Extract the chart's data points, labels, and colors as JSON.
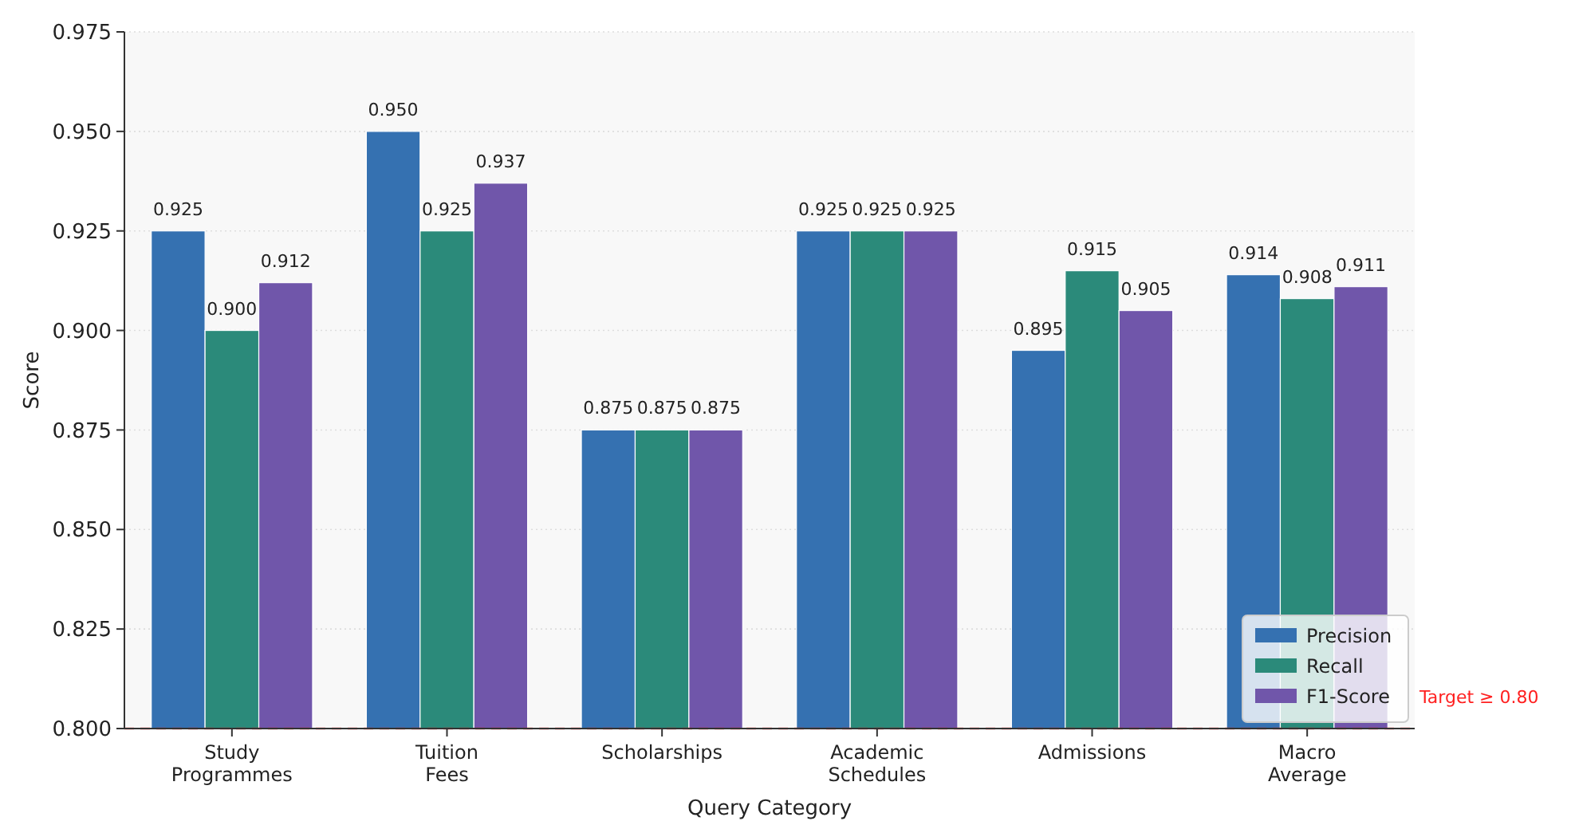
{
  "chart_data": {
    "type": "bar",
    "xlabel": "Query Category",
    "ylabel": "Score",
    "categories": [
      "Study\nProgrammes",
      "Tuition\nFees",
      "Scholarships",
      "Academic\nSchedules",
      "Admissions",
      "Macro\nAverage"
    ],
    "series": [
      {
        "name": "Precision",
        "color": "#3571b1",
        "values": [
          0.925,
          0.95,
          0.875,
          0.925,
          0.895,
          0.914
        ],
        "value_labels": [
          "0.925",
          "0.950",
          "0.875",
          "0.925",
          "0.895",
          "0.914"
        ]
      },
      {
        "name": "Recall",
        "color": "#2b8a7a",
        "values": [
          0.9,
          0.925,
          0.875,
          0.925,
          0.915,
          0.908
        ],
        "value_labels": [
          "0.900",
          "0.925",
          "0.875",
          "0.925",
          "0.915",
          "0.908"
        ]
      },
      {
        "name": "F1-Score",
        "color": "#7056aa",
        "values": [
          0.912,
          0.937,
          0.875,
          0.925,
          0.905,
          0.911
        ],
        "value_labels": [
          "0.912",
          "0.937",
          "0.875",
          "0.925",
          "0.905",
          "0.911"
        ]
      }
    ],
    "ylim": [
      0.8,
      0.975
    ],
    "yticks": [
      {
        "value": 0.8,
        "label": "0.800"
      },
      {
        "value": 0.825,
        "label": "0.825"
      },
      {
        "value": 0.85,
        "label": "0.850"
      },
      {
        "value": 0.875,
        "label": "0.875"
      },
      {
        "value": 0.9,
        "label": "0.900"
      },
      {
        "value": 0.925,
        "label": "0.925"
      },
      {
        "value": 0.95,
        "label": "0.950"
      },
      {
        "value": 0.975,
        "label": "0.975"
      }
    ],
    "grid": "y",
    "legend": "bottom right",
    "ref_lines": [
      {
        "axis": "y",
        "value": 0.8,
        "label": "Target ≥ 0.80",
        "color": "#ff2020",
        "line_style": "dashed"
      }
    ]
  }
}
